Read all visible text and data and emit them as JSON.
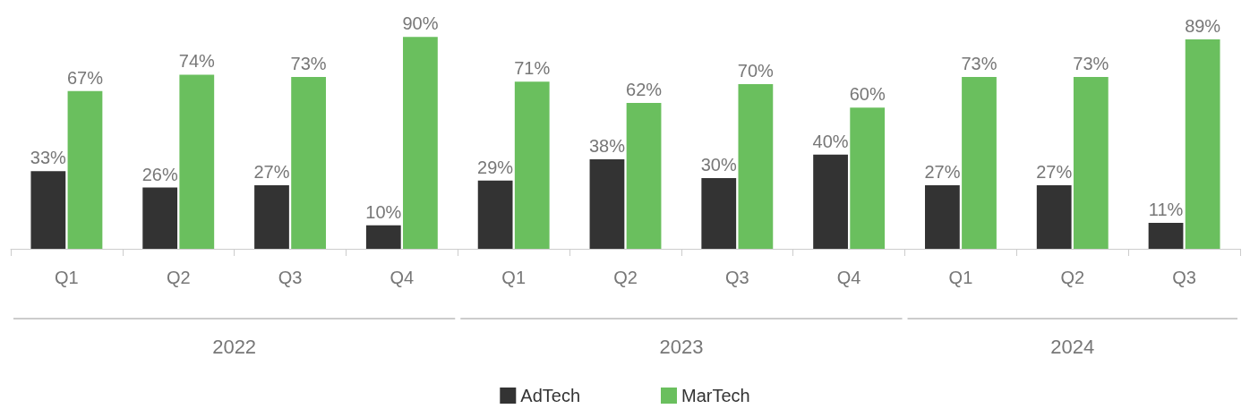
{
  "chart_data": {
    "type": "bar",
    "categories": [
      "Q1",
      "Q2",
      "Q3",
      "Q4",
      "Q1",
      "Q2",
      "Q3",
      "Q4",
      "Q1",
      "Q2",
      "Q3"
    ],
    "series": [
      {
        "name": "AdTech",
        "color": "#333333",
        "values": [
          33,
          26,
          27,
          10,
          29,
          38,
          30,
          40,
          27,
          27,
          11
        ],
        "value_labels": [
          "33%",
          "26%",
          "27%",
          "10%",
          "29%",
          "38%",
          "30%",
          "40%",
          "27%",
          "27%",
          "11%"
        ]
      },
      {
        "name": "MarTech",
        "color": "#6abf5e",
        "values": [
          67,
          74,
          73,
          90,
          71,
          62,
          70,
          60,
          73,
          73,
          89
        ],
        "value_labels": [
          "67%",
          "74%",
          "73%",
          "90%",
          "71%",
          "62%",
          "70%",
          "60%",
          "73%",
          "73%",
          "89%"
        ]
      }
    ],
    "annotations": [
      "2022",
      "2023",
      "2024"
    ],
    "grid": false,
    "legend": "bottom"
  }
}
